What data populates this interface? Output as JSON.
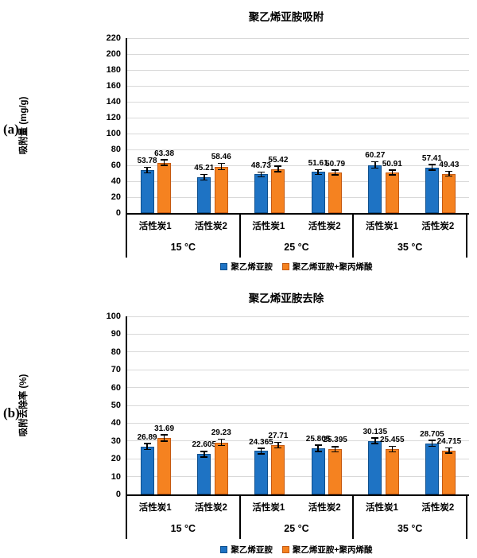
{
  "colors": {
    "series1": "#1e73c4",
    "series2": "#f58220",
    "series1_border": "#0d4e8c",
    "series2_border": "#c45911",
    "grid": "#d9d9d9",
    "axis": "#000000"
  },
  "chart_data": [
    {
      "type": "bar",
      "panel_label": "(a)",
      "title": "聚乙烯亚胺吸附",
      "ylabel": "吸附量 (mg/g)",
      "xlabel": "",
      "ylim": [
        0,
        220
      ],
      "ystep": 20,
      "grid": true,
      "legend_position": "bottom",
      "groups": [
        "15 °C",
        "25 °C",
        "35 °C"
      ],
      "categories": [
        "活性炭1",
        "活性炭2",
        "活性炭1",
        "活性炭2",
        "活性炭1",
        "活性炭2"
      ],
      "categories_per_group": [
        "活性炭1",
        "活性炭2"
      ],
      "series": [
        {
          "name": "聚乙烯亚胺",
          "values": [
            53.78,
            45.21,
            48.73,
            51.61,
            60.27,
            57.41
          ],
          "errors": [
            3.5,
            3.5,
            3,
            3,
            4,
            3.5
          ]
        },
        {
          "name": "聚乙烯亚胺+聚丙烯酸",
          "values": [
            63.38,
            58.46,
            55.42,
            50.79,
            50.91,
            49.43
          ],
          "errors": [
            3.5,
            4,
            3.5,
            3,
            3,
            3
          ]
        }
      ]
    },
    {
      "type": "bar",
      "panel_label": "(b)",
      "title": "聚乙烯亚胺去除",
      "ylabel": "吸附去除率 (%)",
      "xlabel": "",
      "ylim": [
        0,
        100
      ],
      "ystep": 10,
      "grid": true,
      "legend_position": "bottom",
      "groups": [
        "15 °C",
        "25 °C",
        "35 °C"
      ],
      "categories": [
        "活性炭1",
        "活性炭2",
        "活性炭1",
        "活性炭2",
        "活性炭1",
        "活性炭2"
      ],
      "categories_per_group": [
        "活性炭1",
        "活性炭2"
      ],
      "series": [
        {
          "name": "聚乙烯亚胺",
          "values": [
            26.89,
            22.605,
            24.365,
            25.805,
            30.135,
            28.705
          ],
          "errors": [
            1.6,
            1.6,
            1.5,
            1.8,
            1.5,
            1.6
          ]
        },
        {
          "name": "聚乙烯亚胺+聚丙烯酸",
          "values": [
            31.69,
            29.23,
            27.71,
            25.395,
            25.455,
            24.715
          ],
          "errors": [
            1.7,
            1.8,
            1.6,
            1.5,
            1.5,
            1.5
          ]
        }
      ]
    }
  ]
}
